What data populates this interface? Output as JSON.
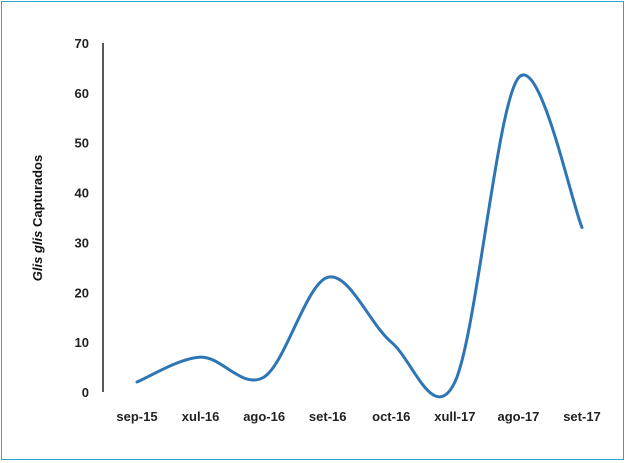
{
  "chart_data": {
    "type": "line",
    "smooth": true,
    "categories": [
      "sep-15",
      "xul-16",
      "ago-16",
      "set-16",
      "oct-16",
      "xull-17",
      "ago-17",
      "set-17"
    ],
    "series": [
      {
        "values": [
          2,
          7,
          3,
          23,
          10,
          2,
          63,
          33
        ]
      }
    ],
    "ylabel_italic": "Glis glis",
    "ylabel_rest": " Capturados",
    "xlabel": "",
    "title": "",
    "ylim": [
      0,
      70
    ],
    "yticks": [
      0,
      10,
      20,
      30,
      40,
      50,
      60,
      70
    ],
    "grid": false,
    "legend": "none",
    "line_color": "#2e75b6",
    "frame_color": "#2aa7c2",
    "axis_color": "#222222"
  }
}
